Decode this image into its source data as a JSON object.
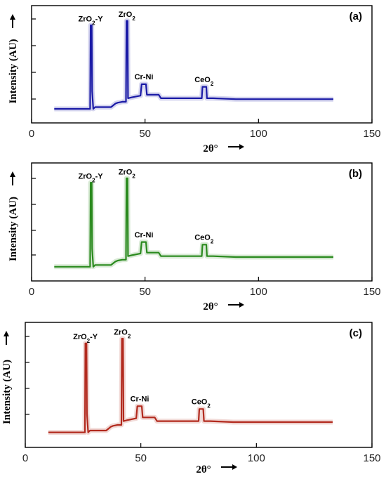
{
  "chart_data": [
    {
      "type": "line",
      "panel_label": "(a)",
      "xlabel": "2θ°",
      "ylabel": "Intensity (AU)",
      "xlim": [
        0,
        150
      ],
      "x_ticks": [
        "0",
        "50",
        "100",
        "150"
      ],
      "grid": false,
      "series": [
        {
          "color": "#1a1aa6",
          "x": [
            10,
            25.8,
            26.0,
            26.5,
            26.7,
            27.2,
            28,
            35,
            37,
            38,
            40,
            41.6,
            41.8,
            42.3,
            42.5,
            44,
            48,
            48.5,
            50.4,
            50.8,
            56,
            57,
            75,
            75.3,
            77,
            77.3,
            80,
            90,
            133
          ],
          "y": [
            0,
            0,
            0.95,
            0.95,
            0.2,
            0.0,
            0.02,
            0.02,
            0.06,
            0.07,
            0.08,
            0.08,
            1.0,
            1.0,
            0.12,
            0.13,
            0.15,
            0.28,
            0.28,
            0.16,
            0.16,
            0.12,
            0.12,
            0.25,
            0.25,
            0.12,
            0.12,
            0.11,
            0.11
          ]
        }
      ],
      "annotations": [
        {
          "text": "ZrO₂-Y",
          "x": 26,
          "y": 0.97
        },
        {
          "text": "ZrO₂",
          "x": 42,
          "y": 1.02
        },
        {
          "text": "Cr-Ni",
          "x": 49.5,
          "y": 0.31
        },
        {
          "text": "CeO₂",
          "x": 76,
          "y": 0.28
        }
      ]
    },
    {
      "type": "line",
      "panel_label": "(b)",
      "xlabel": "2θ°",
      "ylabel": "Intensity (AU)",
      "xlim": [
        0,
        150
      ],
      "x_ticks": [
        "0",
        "50",
        "100",
        "150"
      ],
      "grid": false,
      "series": [
        {
          "color": "#2a8a1e",
          "x": [
            10,
            25.8,
            26.0,
            26.5,
            26.7,
            27.2,
            28,
            35,
            37,
            38,
            40,
            41.6,
            41.8,
            42.3,
            42.5,
            44,
            48,
            48.5,
            50.4,
            50.8,
            56,
            57,
            75,
            75.3,
            77,
            77.3,
            80,
            90,
            133
          ],
          "y": [
            0,
            0,
            0.95,
            0.95,
            0.2,
            0.0,
            0.02,
            0.02,
            0.06,
            0.07,
            0.08,
            0.08,
            1.0,
            1.0,
            0.12,
            0.13,
            0.15,
            0.28,
            0.28,
            0.16,
            0.16,
            0.12,
            0.12,
            0.25,
            0.25,
            0.12,
            0.12,
            0.11,
            0.11
          ]
        }
      ],
      "annotations": [
        {
          "text": "ZrO₂-Y",
          "x": 26,
          "y": 0.97
        },
        {
          "text": "ZrO₂",
          "x": 42,
          "y": 1.02
        },
        {
          "text": "Cr-Ni",
          "x": 49.5,
          "y": 0.31
        },
        {
          "text": "CeO₂",
          "x": 76,
          "y": 0.28
        }
      ]
    },
    {
      "type": "line",
      "panel_label": "(c)",
      "xlabel": "2θ°",
      "ylabel": "Intensity (AU)",
      "xlim": [
        0,
        150
      ],
      "x_ticks": [
        "0",
        "50",
        "100",
        "150"
      ],
      "grid": false,
      "series": [
        {
          "color": "#b22a1e",
          "x": [
            10,
            25.8,
            26.0,
            26.5,
            26.7,
            27.2,
            28,
            35,
            37,
            38,
            40,
            41.6,
            41.8,
            42.3,
            42.5,
            44,
            48,
            48.5,
            50.4,
            50.8,
            56,
            57,
            75,
            75.3,
            77,
            77.3,
            80,
            90,
            133
          ],
          "y": [
            0,
            0,
            0.95,
            0.95,
            0.2,
            0.0,
            0.02,
            0.02,
            0.06,
            0.07,
            0.08,
            0.08,
            1.0,
            1.0,
            0.12,
            0.13,
            0.15,
            0.28,
            0.28,
            0.16,
            0.16,
            0.12,
            0.12,
            0.25,
            0.25,
            0.12,
            0.12,
            0.11,
            0.11
          ]
        }
      ],
      "annotations": [
        {
          "text": "ZrO₂-Y",
          "x": 26,
          "y": 0.97
        },
        {
          "text": "ZrO₂",
          "x": 42,
          "y": 1.02
        },
        {
          "text": "Cr-Ni",
          "x": 49.5,
          "y": 0.31
        },
        {
          "text": "CeO₂",
          "x": 76,
          "y": 0.28
        }
      ]
    }
  ]
}
